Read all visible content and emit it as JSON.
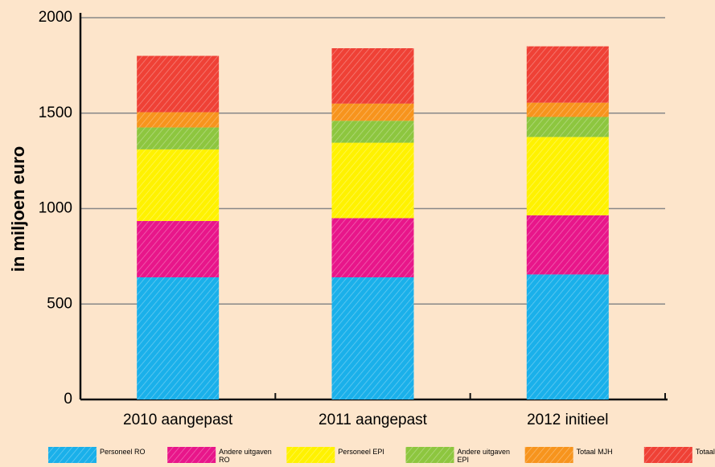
{
  "chart_data": {
    "type": "stacked_bar",
    "ylabel": "in miljoen euro",
    "categories": [
      "2010 aangepast",
      "2011 aangepast",
      "2012 initieel"
    ],
    "series": [
      {
        "name": "Personeel RO",
        "color": "#1ab0ea",
        "values": [
          640,
          640,
          655
        ]
      },
      {
        "name": "Andere uitgaven RO",
        "color": "#e8168a",
        "values": [
          295,
          310,
          310
        ]
      },
      {
        "name": "Personeel EPI",
        "color": "#fff200",
        "values": [
          375,
          395,
          410
        ]
      },
      {
        "name": "Andere uitgaven EPI",
        "color": "#8dc63f",
        "values": [
          115,
          115,
          105
        ]
      },
      {
        "name": "Totaal MJH",
        "color": "#f7941d",
        "values": [
          80,
          90,
          75
        ]
      },
      {
        "name": "Totaal andere",
        "color": "#ef4136",
        "values": [
          295,
          290,
          295
        ]
      }
    ],
    "ylim": [
      0,
      2000
    ],
    "yticks": [
      0,
      500,
      1000,
      1500,
      2000
    ],
    "grid": true,
    "legend": "bottom"
  }
}
